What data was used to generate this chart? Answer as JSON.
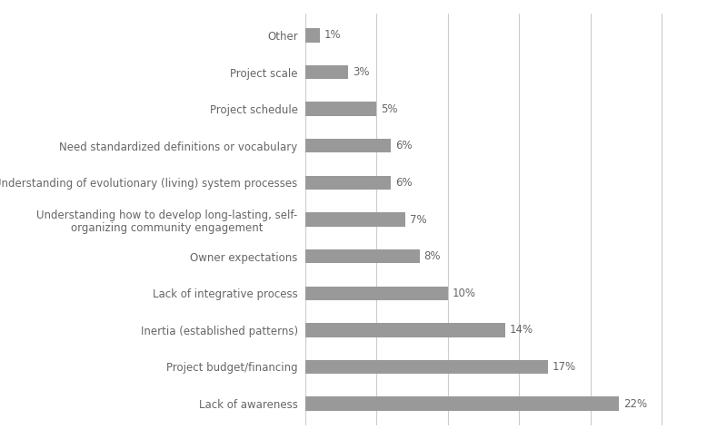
{
  "categories": [
    "Other",
    "Project scale",
    "Project schedule",
    "Need standardized definitions or vocabulary",
    "Understanding of evolutionary (living) system processes",
    "Understanding how to develop long-lasting, self-\norganizing community engagement",
    "Owner expectations",
    "Lack of integrative process",
    "Inertia (established patterns)",
    "Project budget/financing",
    "Lack of awareness"
  ],
  "values": [
    1,
    3,
    5,
    6,
    6,
    7,
    8,
    10,
    14,
    17,
    22
  ],
  "bar_color": "#999999",
  "label_color": "#666666",
  "background_color": "#ffffff",
  "grid_color": "#cccccc",
  "figsize": [
    8.0,
    4.84
  ],
  "dpi": 100,
  "bar_height": 0.38,
  "xlim": [
    0,
    26
  ],
  "fontsize_labels": 8.5,
  "fontsize_values": 8.5
}
